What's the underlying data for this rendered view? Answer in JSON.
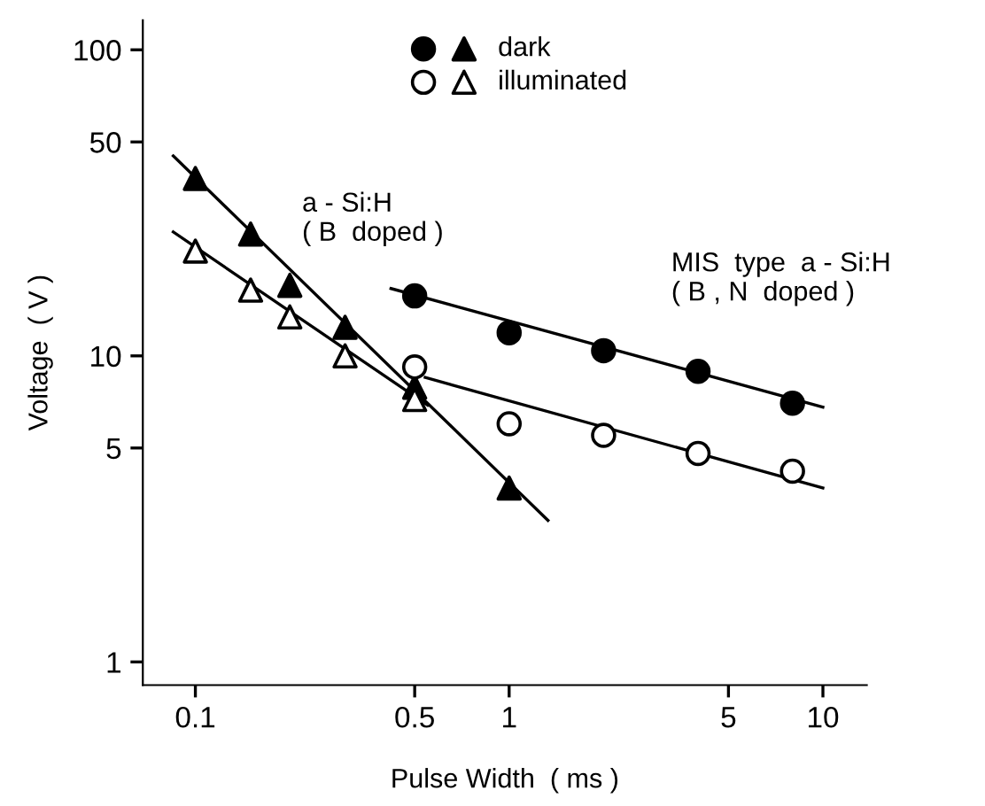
{
  "chart_data": {
    "type": "scatter",
    "xlabel": "Pulse Width  ( ms )",
    "ylabel": "Voltage  ( V )",
    "log": "xy",
    "xlim": [
      0.068,
      13.8
    ],
    "ylim": [
      0.84,
      125
    ],
    "xticks": [
      0.1,
      0.5,
      1,
      5,
      10
    ],
    "yticks": [
      1,
      5,
      10,
      50,
      100
    ],
    "grid": false,
    "legend": "top",
    "line_style": "solid",
    "series": [
      {
        "color": "#000000",
        "marker": "circle",
        "x": [
          0.5,
          1,
          2,
          4,
          8
        ],
        "values": [
          15.7,
          11.9,
          10.4,
          8.9,
          7.0
        ]
      },
      {
        "name": "dark",
        "color": "#000000",
        "marker": "triangle",
        "x": [
          0.1,
          0.15,
          0.2,
          0.3,
          0.5,
          1
        ],
        "values": [
          38,
          25,
          17,
          12.4,
          7.9,
          3.7
        ]
      },
      {
        "color": "#ffffff",
        "marker": "circle",
        "x": [
          0.5,
          1,
          2,
          4,
          8
        ],
        "values": [
          9.2,
          6.0,
          5.5,
          4.8,
          4.2
        ]
      },
      {
        "name": "illuminated",
        "color": "#ffffff",
        "marker": "triangle",
        "x": [
          0.1,
          0.15,
          0.2,
          0.3,
          0.5
        ],
        "values": [
          22,
          16.4,
          13.4,
          10,
          7.2
        ]
      },
      {
        "type": "line",
        "color": "#000000",
        "x": [
          0.42,
          10
        ],
        "values": [
          16.6,
          6.8
        ]
      },
      {
        "type": "line",
        "color": "#000000",
        "x": [
          0.54,
          10
        ],
        "values": [
          8.5,
          3.7
        ]
      },
      {
        "type": "line",
        "color": "#000000",
        "x": [
          0.085,
          1.33
        ],
        "values": [
          45,
          2.9
        ]
      },
      {
        "type": "line",
        "color": "#000000",
        "x": [
          0.085,
          0.55
        ],
        "values": [
          25.4,
          6.9
        ]
      }
    ],
    "annotations": [
      "a - Si:H\n( B  doped )",
      "MIS  type  a - Si:H\n( B , N  doped )"
    ]
  }
}
